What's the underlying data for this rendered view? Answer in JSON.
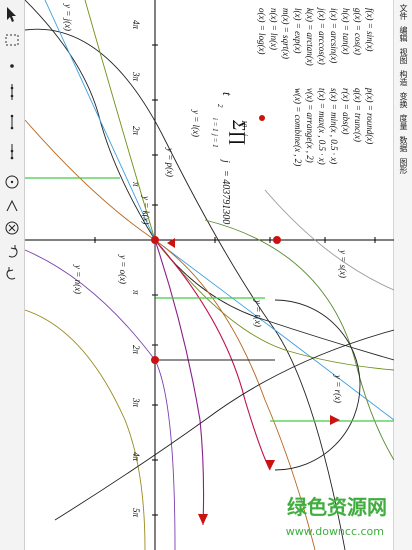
{
  "menu": [
    "文件",
    "编辑",
    "视图",
    "构造",
    "变换",
    "度量",
    "数据",
    "图形"
  ],
  "tools": [
    "pointer-tool",
    "select-tool",
    "point-tool",
    "line-tool",
    "segment-tool",
    "ray-tool",
    "circle-tool",
    "angle-tool",
    "delete-tool",
    "undo-tool",
    "redo-tool"
  ],
  "func_list": [
    "f(x) = sin(x)",
    "g(x) = cos(x)",
    "h(x) = tan(x)",
    "i(x) = arcsin(x)",
    "j(x) = arccos(x)",
    "k(x) = arctan(x)",
    "l(x) = exp(x)",
    "m(x) = sqrt(x)",
    "n(x) = ln(x)",
    "o(x) = log(x)",
    "p(x) = round(x)",
    "q(x) = trunc(x)",
    "r(x) = abs(x)",
    "s(x) = min(x , 0.5 · x)",
    "t(x) = max(x , 0.5 · x)",
    "v(x) = arrange(x , 2)",
    "w(x) = combine(x , 2)"
  ],
  "sum_expr": {
    "lhs": "t",
    "sub": "2",
    "upper": "10",
    "lower": "i = 1",
    "prod_upper": "i",
    "prod_lower": "j = 1",
    "var": "j",
    "result": "= 403791300"
  },
  "xaxis_labels": [
    "4π",
    "3π",
    "2π",
    "π",
    "π",
    "2π",
    "3π",
    "4π",
    "5π"
  ],
  "xaxis_denom": "7",
  "graph_labels": {
    "yj": "y = j(x)",
    "yl": "y = l(x)",
    "yp": "y = p(x)",
    "yk": "y = k(x)",
    "yt": "y = t(x)",
    "yo": "y = o(x)",
    "yn": "y = n(x)",
    "ys": "y = s(x)",
    "yr": "y = r(x)"
  },
  "watermark": {
    "title": "绿色资源网",
    "url": "www.downcc.com"
  },
  "colors": {
    "toolbar_bg": "#f3f3f3",
    "point": "#cc1111",
    "watermark": "#3fae3f"
  }
}
